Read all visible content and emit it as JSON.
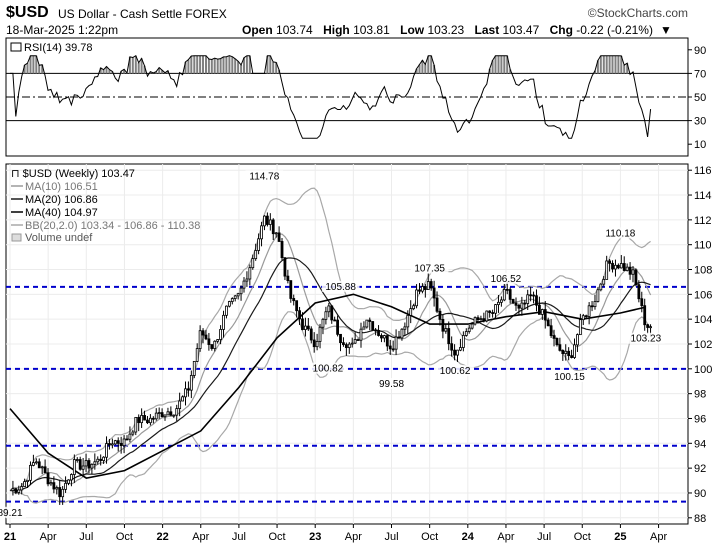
{
  "header": {
    "symbol": "$USD",
    "name": "US Dollar - Cash Settle",
    "exchange": "FOREX",
    "brand": "©StockCharts.com",
    "date": "18-Mar-2025 1:22pm",
    "open_label": "Open",
    "open": "103.74",
    "high_label": "High",
    "high": "103.81",
    "low_label": "Low",
    "low": "103.23",
    "last_label": "Last",
    "last": "103.47",
    "chg_label": "Chg",
    "chg": "-0.22 (-0.21%)"
  },
  "rsi": {
    "label": "RSI(14) 39.78",
    "value": 39.78,
    "levels": [
      70,
      50,
      30
    ],
    "ticks": [
      "90",
      "70",
      "50",
      "30",
      "10"
    ]
  },
  "legend": {
    "price": "$USD (Weekly) 103.47",
    "ma10": "MA(10) 106.51",
    "ma20": "MA(20) 106.86",
    "ma40": "MA(40) 104.97",
    "bb": "BB(20,2.0) 103.34 - 106.86 - 110.38",
    "volume": "Volume undef"
  },
  "colors": {
    "ma10": "#9a9a9a",
    "ma20": "#1a1a1a",
    "ma40": "#000000",
    "bb": "#a8a8a8",
    "support": "#0000cc",
    "rsi_fill": "#7f7f7f"
  },
  "chart_data": {
    "type": "candlestick",
    "title": "$USD (Weekly)",
    "x_ticks": [
      "21",
      "Apr",
      "Jul",
      "Oct",
      "22",
      "Apr",
      "Jul",
      "Oct",
      "23",
      "Apr",
      "Jul",
      "Oct",
      "24",
      "Apr",
      "Jul",
      "Oct",
      "25",
      "Apr"
    ],
    "y_ticks": [
      "116",
      "114",
      "112",
      "110",
      "108",
      "106",
      "104",
      "102",
      "100",
      "98",
      "96",
      "94",
      "92",
      "90",
      "88"
    ],
    "ylim": [
      87.5,
      116.5
    ],
    "x_range": [
      "2021-01",
      "2025-06"
    ],
    "price_path": [
      [
        "2021-01",
        90.2
      ],
      [
        "2021-02",
        90.6
      ],
      [
        "2021-03",
        92.7
      ],
      [
        "2021-04",
        91.1
      ],
      [
        "2021-05",
        89.9
      ],
      [
        "2021-06",
        92.3
      ],
      [
        "2021-07",
        92.2
      ],
      [
        "2021-08",
        92.6
      ],
      [
        "2021-09",
        94.2
      ],
      [
        "2021-10",
        94.1
      ],
      [
        "2021-11",
        95.9
      ],
      [
        "2021-12",
        95.9
      ],
      [
        "2022-01",
        96.5
      ],
      [
        "2022-02",
        96.7
      ],
      [
        "2022-03",
        98.3
      ],
      [
        "2022-04",
        103.0
      ],
      [
        "2022-05",
        101.7
      ],
      [
        "2022-06",
        104.7
      ],
      [
        "2022-07",
        105.9
      ],
      [
        "2022-08",
        108.7
      ],
      [
        "2022-09",
        112.1
      ],
      [
        "2022-10",
        111.0
      ],
      [
        "2022-11",
        105.9
      ],
      [
        "2022-12",
        103.5
      ],
      [
        "2023-01",
        102.1
      ],
      [
        "2023-02",
        104.9
      ],
      [
        "2023-03",
        102.5
      ],
      [
        "2023-04",
        101.7
      ],
      [
        "2023-05",
        104.2
      ],
      [
        "2023-06",
        102.9
      ],
      [
        "2023-07",
        101.8
      ],
      [
        "2023-08",
        103.6
      ],
      [
        "2023-09",
        106.2
      ],
      [
        "2023-10",
        106.7
      ],
      [
        "2023-11",
        103.5
      ],
      [
        "2023-12",
        101.3
      ],
      [
        "2024-01",
        103.3
      ],
      [
        "2024-02",
        104.1
      ],
      [
        "2024-03",
        104.5
      ],
      [
        "2024-04",
        106.2
      ],
      [
        "2024-05",
        104.6
      ],
      [
        "2024-06",
        105.9
      ],
      [
        "2024-07",
        104.1
      ],
      [
        "2024-08",
        101.7
      ],
      [
        "2024-09",
        100.8
      ],
      [
        "2024-10",
        104.0
      ],
      [
        "2024-11",
        105.7
      ],
      [
        "2024-12",
        108.5
      ],
      [
        "2025-01",
        108.4
      ],
      [
        "2025-02",
        107.6
      ],
      [
        "2025-03",
        103.47
      ]
    ],
    "ma40_path": [
      [
        "2021-01",
        96.8
      ],
      [
        "2021-04",
        93.2
      ],
      [
        "2021-07",
        91.2
      ],
      [
        "2021-10",
        91.8
      ],
      [
        "2022-01",
        93.4
      ],
      [
        "2022-04",
        95.0
      ],
      [
        "2022-07",
        98.5
      ],
      [
        "2022-10",
        102.5
      ],
      [
        "2023-01",
        105.3
      ],
      [
        "2023-04",
        106.0
      ],
      [
        "2023-07",
        105.0
      ],
      [
        "2023-10",
        103.6
      ],
      [
        "2024-01",
        103.6
      ],
      [
        "2024-04",
        104.2
      ],
      [
        "2024-07",
        104.6
      ],
      [
        "2024-10",
        104.0
      ],
      [
        "2025-01",
        104.5
      ],
      [
        "2025-03",
        104.97
      ]
    ],
    "annotations": [
      {
        "label": "114.78",
        "date": "2022-09",
        "value": 114.78
      },
      {
        "label": "105.88",
        "date": "2023-03",
        "value": 105.88
      },
      {
        "label": "100.82",
        "date": "2023-02",
        "value": 100.82
      },
      {
        "label": "99.58",
        "date": "2023-07",
        "value": 99.58
      },
      {
        "label": "107.35",
        "date": "2023-10",
        "value": 107.35
      },
      {
        "label": "100.62",
        "date": "2023-12",
        "value": 100.62
      },
      {
        "label": "106.52",
        "date": "2024-04",
        "value": 106.52
      },
      {
        "label": "100.15",
        "date": "2024-09",
        "value": 100.15
      },
      {
        "label": "110.18",
        "date": "2025-01",
        "value": 110.18
      },
      {
        "label": "103.23",
        "date": "2025-03",
        "value": 103.23
      },
      {
        "label": "89.21",
        "date": "2021-01",
        "value": 89.21
      }
    ],
    "support_lines": [
      106.6,
      100.0,
      93.8,
      89.3
    ]
  }
}
